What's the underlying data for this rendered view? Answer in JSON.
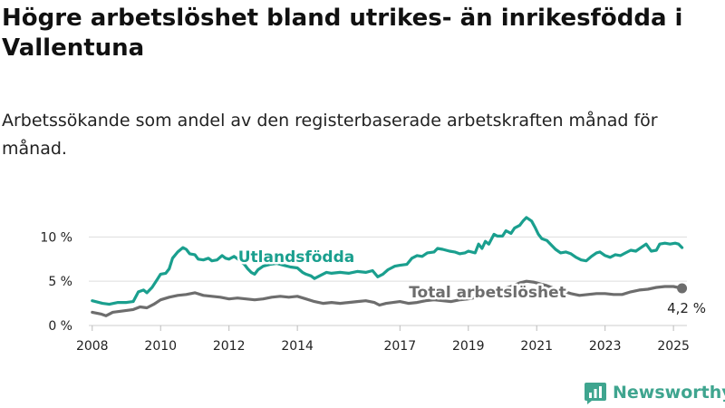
{
  "title": "Högre arbetslöshet bland utrikes- än inrikesfödda i Vallentuna",
  "subtitle": "Arbetssökande som andel av den registerbaserade arbetskraften månad för månad.",
  "brand": {
    "name": "Newsworthy",
    "icon": "newsworthy-logo-icon",
    "color": "#3fa58f"
  },
  "colors": {
    "foreign": "#1a9f8e",
    "total": "#6d6d6d",
    "grid": "#dddddd"
  },
  "chart_data": {
    "type": "line",
    "title": "Högre arbetslöshet bland utrikes- än inrikesfödda i Vallentuna",
    "subtitle": "Arbetssökande som andel av den registerbaserade arbetskraften månad för månad.",
    "xlabel": "",
    "ylabel": "",
    "x_unit": "year",
    "xlim": [
      2007.9,
      2025.5
    ],
    "ylim": [
      0,
      12.8
    ],
    "grid": "horizontal",
    "x_ticks": [
      "2008",
      "2010",
      "2012",
      "2014",
      "2017",
      "2019",
      "2021",
      "2023",
      "2025"
    ],
    "y_ticks": [
      {
        "value": 0,
        "label": "0 %"
      },
      {
        "value": 5,
        "label": "5 %"
      },
      {
        "value": 10,
        "label": "10 %"
      }
    ],
    "end_label": "4,2 %",
    "series": [
      {
        "name": "Utlandsfödda",
        "points": [
          [
            2008.0,
            2.8
          ],
          [
            2008.3,
            2.5
          ],
          [
            2008.5,
            2.4
          ],
          [
            2008.75,
            2.6
          ],
          [
            2009.0,
            2.6
          ],
          [
            2009.2,
            2.7
          ],
          [
            2009.35,
            3.8
          ],
          [
            2009.5,
            4.0
          ],
          [
            2009.6,
            3.7
          ],
          [
            2009.75,
            4.3
          ],
          [
            2009.9,
            5.2
          ],
          [
            2010.0,
            5.8
          ],
          [
            2010.15,
            5.9
          ],
          [
            2010.25,
            6.4
          ],
          [
            2010.35,
            7.6
          ],
          [
            2010.5,
            8.3
          ],
          [
            2010.65,
            8.8
          ],
          [
            2010.75,
            8.6
          ],
          [
            2010.85,
            8.1
          ],
          [
            2011.0,
            8.0
          ],
          [
            2011.1,
            7.5
          ],
          [
            2011.25,
            7.4
          ],
          [
            2011.4,
            7.6
          ],
          [
            2011.5,
            7.3
          ],
          [
            2011.65,
            7.4
          ],
          [
            2011.8,
            7.9
          ],
          [
            2011.9,
            7.6
          ],
          [
            2012.0,
            7.5
          ],
          [
            2012.15,
            7.8
          ],
          [
            2012.3,
            7.4
          ],
          [
            2012.45,
            6.9
          ],
          [
            2012.55,
            6.4
          ],
          [
            2012.65,
            6.0
          ],
          [
            2012.75,
            5.8
          ],
          [
            2012.85,
            6.3
          ],
          [
            2013.0,
            6.7
          ],
          [
            2013.2,
            6.9
          ],
          [
            2013.4,
            7.0
          ],
          [
            2013.6,
            6.8
          ],
          [
            2013.8,
            6.6
          ],
          [
            2014.0,
            6.5
          ],
          [
            2014.15,
            6.0
          ],
          [
            2014.25,
            5.8
          ],
          [
            2014.4,
            5.6
          ],
          [
            2014.5,
            5.3
          ],
          [
            2014.7,
            5.7
          ],
          [
            2014.85,
            6.0
          ],
          [
            2015.0,
            5.9
          ],
          [
            2015.25,
            6.0
          ],
          [
            2015.5,
            5.9
          ],
          [
            2015.75,
            6.1
          ],
          [
            2016.0,
            6.0
          ],
          [
            2016.2,
            6.2
          ],
          [
            2016.35,
            5.5
          ],
          [
            2016.5,
            5.8
          ],
          [
            2016.65,
            6.3
          ],
          [
            2016.85,
            6.7
          ],
          [
            2017.0,
            6.8
          ],
          [
            2017.2,
            6.9
          ],
          [
            2017.35,
            7.6
          ],
          [
            2017.5,
            7.9
          ],
          [
            2017.65,
            7.8
          ],
          [
            2017.8,
            8.2
          ],
          [
            2018.0,
            8.3
          ],
          [
            2018.1,
            8.7
          ],
          [
            2018.25,
            8.6
          ],
          [
            2018.45,
            8.4
          ],
          [
            2018.6,
            8.3
          ],
          [
            2018.75,
            8.1
          ],
          [
            2018.9,
            8.2
          ],
          [
            2019.0,
            8.4
          ],
          [
            2019.2,
            8.2
          ],
          [
            2019.3,
            9.2
          ],
          [
            2019.4,
            8.7
          ],
          [
            2019.5,
            9.5
          ],
          [
            2019.6,
            9.2
          ],
          [
            2019.75,
            10.3
          ],
          [
            2019.85,
            10.1
          ],
          [
            2020.0,
            10.1
          ],
          [
            2020.1,
            10.7
          ],
          [
            2020.25,
            10.4
          ],
          [
            2020.35,
            11.0
          ],
          [
            2020.5,
            11.3
          ],
          [
            2020.6,
            11.8
          ],
          [
            2020.7,
            12.2
          ],
          [
            2020.85,
            11.8
          ],
          [
            2020.95,
            11.1
          ],
          [
            2021.05,
            10.3
          ],
          [
            2021.15,
            9.8
          ],
          [
            2021.3,
            9.6
          ],
          [
            2021.45,
            9.0
          ],
          [
            2021.55,
            8.6
          ],
          [
            2021.7,
            8.2
          ],
          [
            2021.85,
            8.3
          ],
          [
            2022.0,
            8.1
          ],
          [
            2022.15,
            7.7
          ],
          [
            2022.3,
            7.4
          ],
          [
            2022.45,
            7.3
          ],
          [
            2022.6,
            7.8
          ],
          [
            2022.75,
            8.2
          ],
          [
            2022.85,
            8.3
          ],
          [
            2023.0,
            7.9
          ],
          [
            2023.15,
            7.7
          ],
          [
            2023.3,
            8.0
          ],
          [
            2023.45,
            7.9
          ],
          [
            2023.6,
            8.2
          ],
          [
            2023.75,
            8.5
          ],
          [
            2023.9,
            8.4
          ],
          [
            2024.05,
            8.8
          ],
          [
            2024.2,
            9.2
          ],
          [
            2024.35,
            8.4
          ],
          [
            2024.5,
            8.5
          ],
          [
            2024.6,
            9.2
          ],
          [
            2024.75,
            9.3
          ],
          [
            2024.9,
            9.2
          ],
          [
            2025.05,
            9.3
          ],
          [
            2025.15,
            9.2
          ],
          [
            2025.25,
            8.8
          ]
        ]
      },
      {
        "name": "Total arbetslöshet",
        "points": [
          [
            2008.0,
            1.5
          ],
          [
            2008.25,
            1.3
          ],
          [
            2008.4,
            1.1
          ],
          [
            2008.6,
            1.5
          ],
          [
            2008.8,
            1.6
          ],
          [
            2009.0,
            1.7
          ],
          [
            2009.2,
            1.8
          ],
          [
            2009.4,
            2.1
          ],
          [
            2009.6,
            2.0
          ],
          [
            2009.8,
            2.4
          ],
          [
            2010.0,
            2.9
          ],
          [
            2010.25,
            3.2
          ],
          [
            2010.5,
            3.4
          ],
          [
            2010.75,
            3.5
          ],
          [
            2011.0,
            3.7
          ],
          [
            2011.25,
            3.4
          ],
          [
            2011.5,
            3.3
          ],
          [
            2011.75,
            3.2
          ],
          [
            2012.0,
            3.0
          ],
          [
            2012.25,
            3.1
          ],
          [
            2012.5,
            3.0
          ],
          [
            2012.75,
            2.9
          ],
          [
            2013.0,
            3.0
          ],
          [
            2013.25,
            3.2
          ],
          [
            2013.5,
            3.3
          ],
          [
            2013.75,
            3.2
          ],
          [
            2014.0,
            3.3
          ],
          [
            2014.25,
            3.0
          ],
          [
            2014.5,
            2.7
          ],
          [
            2014.75,
            2.5
          ],
          [
            2015.0,
            2.6
          ],
          [
            2015.25,
            2.5
          ],
          [
            2015.5,
            2.6
          ],
          [
            2015.75,
            2.7
          ],
          [
            2016.0,
            2.8
          ],
          [
            2016.25,
            2.6
          ],
          [
            2016.4,
            2.3
          ],
          [
            2016.6,
            2.5
          ],
          [
            2016.8,
            2.6
          ],
          [
            2017.0,
            2.7
          ],
          [
            2017.25,
            2.5
          ],
          [
            2017.5,
            2.6
          ],
          [
            2017.75,
            2.8
          ],
          [
            2018.0,
            2.9
          ],
          [
            2018.25,
            2.8
          ],
          [
            2018.5,
            2.7
          ],
          [
            2018.75,
            2.9
          ],
          [
            2019.0,
            3.0
          ],
          [
            2019.25,
            3.2
          ],
          [
            2019.5,
            3.4
          ],
          [
            2019.75,
            3.8
          ],
          [
            2020.0,
            4.1
          ],
          [
            2020.25,
            4.4
          ],
          [
            2020.5,
            4.8
          ],
          [
            2020.7,
            5.0
          ],
          [
            2020.9,
            4.9
          ],
          [
            2021.1,
            4.7
          ],
          [
            2021.3,
            4.5
          ],
          [
            2021.5,
            4.2
          ],
          [
            2021.75,
            3.9
          ],
          [
            2022.0,
            3.6
          ],
          [
            2022.25,
            3.4
          ],
          [
            2022.5,
            3.5
          ],
          [
            2022.75,
            3.6
          ],
          [
            2023.0,
            3.6
          ],
          [
            2023.25,
            3.5
          ],
          [
            2023.5,
            3.5
          ],
          [
            2023.75,
            3.8
          ],
          [
            2024.0,
            4.0
          ],
          [
            2024.25,
            4.1
          ],
          [
            2024.5,
            4.3
          ],
          [
            2024.75,
            4.4
          ],
          [
            2025.0,
            4.4
          ],
          [
            2025.25,
            4.2
          ]
        ]
      }
    ]
  }
}
